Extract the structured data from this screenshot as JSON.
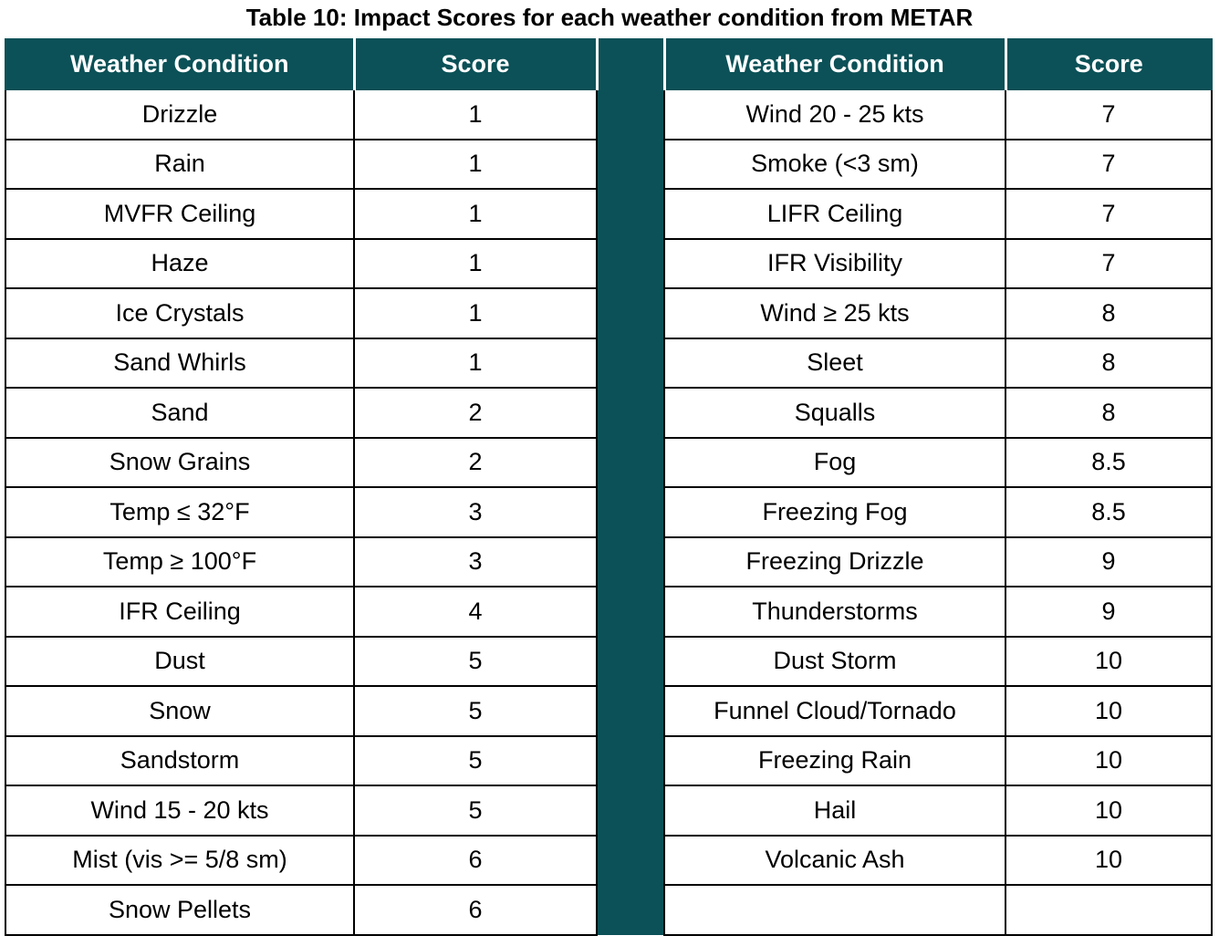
{
  "caption": "Table 10: Impact Scores for each weather condition from METAR",
  "headers": {
    "left_condition": "Weather Condition",
    "left_score": "Score",
    "right_condition": "Weather Condition",
    "right_score": "Score"
  },
  "rows": [
    {
      "lc": "Drizzle",
      "ls": "1",
      "rc": "Wind 20 - 25 kts",
      "rs": "7"
    },
    {
      "lc": "Rain",
      "ls": "1",
      "rc": "Smoke (<3 sm)",
      "rs": "7"
    },
    {
      "lc": "MVFR Ceiling",
      "ls": "1",
      "rc": "LIFR Ceiling",
      "rs": "7"
    },
    {
      "lc": "Haze",
      "ls": "1",
      "rc": "IFR Visibility",
      "rs": "7"
    },
    {
      "lc": "Ice Crystals",
      "ls": "1",
      "rc": "Wind ≥ 25 kts",
      "rs": "8"
    },
    {
      "lc": "Sand Whirls",
      "ls": "1",
      "rc": "Sleet",
      "rs": "8"
    },
    {
      "lc": "Sand",
      "ls": "2",
      "rc": "Squalls",
      "rs": "8"
    },
    {
      "lc": "Snow Grains",
      "ls": "2",
      "rc": "Fog",
      "rs": "8.5"
    },
    {
      "lc": "Temp ≤ 32°F",
      "ls": "3",
      "rc": "Freezing Fog",
      "rs": "8.5"
    },
    {
      "lc": "Temp ≥ 100°F",
      "ls": "3",
      "rc": "Freezing Drizzle",
      "rs": "9"
    },
    {
      "lc": "IFR Ceiling",
      "ls": "4",
      "rc": "Thunderstorms",
      "rs": "9"
    },
    {
      "lc": "Dust",
      "ls": "5",
      "rc": "Dust Storm",
      "rs": "10"
    },
    {
      "lc": "Snow",
      "ls": "5",
      "rc": "Funnel Cloud/Tornado",
      "rs": "10"
    },
    {
      "lc": "Sandstorm",
      "ls": "5",
      "rc": "Freezing Rain",
      "rs": "10"
    },
    {
      "lc": "Wind 15 - 20 kts",
      "ls": "5",
      "rc": "Hail",
      "rs": "10"
    },
    {
      "lc": "Mist (vis >= 5/8 sm)",
      "ls": "6",
      "rc": "Volcanic Ash",
      "rs": "10"
    },
    {
      "lc": "Snow Pellets",
      "ls": "6",
      "rc": "",
      "rs": ""
    }
  ],
  "colors": {
    "header_background": "#0b5157",
    "header_text": "#ffffff"
  }
}
